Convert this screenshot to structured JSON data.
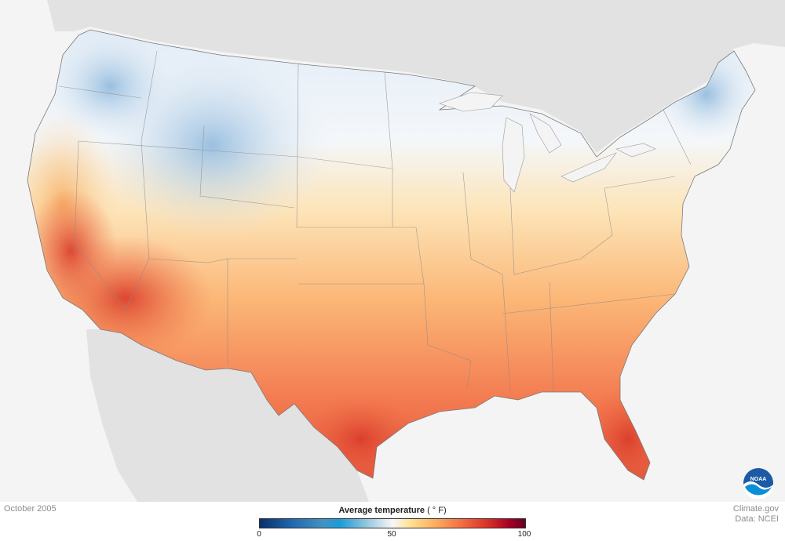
{
  "map": {
    "date": "October 2005",
    "legend": {
      "title": "Average temperature",
      "unit": "( ° F)",
      "ticks": [
        "0",
        "50",
        "100"
      ],
      "min": 0,
      "mid": 50,
      "max": 100
    },
    "credits": {
      "source": "Climate.gov",
      "data": "Data: NCEI"
    },
    "logo_text": "NOAA",
    "colors": {
      "cold": "#2166ac",
      "cool": "#92c5de",
      "neutral": "#f7f7f7",
      "warm": "#fdae61",
      "hot": "#d73027",
      "background_land": "#e2e2e2",
      "background_water": "#f4f4f4"
    }
  }
}
